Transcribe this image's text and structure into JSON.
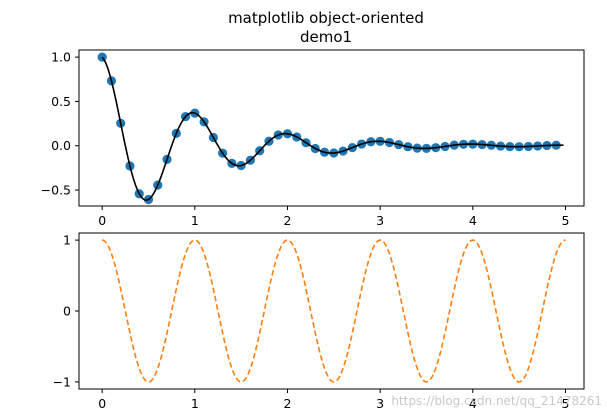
{
  "chart_data": [
    {
      "type": "scatter+line",
      "title": "matplotlib object-oriented\ndemo1",
      "title_lines": [
        "matplotlib object-oriented",
        "demo1"
      ],
      "function": "exp(-t) * cos(2*pi*t)",
      "x_ticks": [
        0,
        1,
        2,
        3,
        4,
        5
      ],
      "y_ticks": [
        -0.5,
        0.0,
        0.5,
        1.0
      ],
      "x_tick_labels": [
        "0",
        "1",
        "2",
        "3",
        "4",
        "5"
      ],
      "y_tick_labels": [
        "−0.5",
        "0.0",
        "0.5",
        "1.0"
      ],
      "xlim": [
        -0.25,
        5.2
      ],
      "ylim": [
        -0.68,
        1.08
      ],
      "grid": false,
      "series": [
        {
          "style": "scatter",
          "marker": "circle",
          "color": "#1f77b4",
          "x": [
            0.0,
            0.1,
            0.2,
            0.3,
            0.4,
            0.5,
            0.6,
            0.7,
            0.8,
            0.9,
            1.0,
            1.1,
            1.2,
            1.3,
            1.4,
            1.5,
            1.6,
            1.7,
            1.8,
            1.9,
            2.0,
            2.1,
            2.2,
            2.3,
            2.4,
            2.5,
            2.6,
            2.7,
            2.8,
            2.9,
            3.0,
            3.1,
            3.2,
            3.3,
            3.4,
            3.5,
            3.6,
            3.7,
            3.8,
            3.9,
            4.0,
            4.1,
            4.2,
            4.3,
            4.4,
            4.5,
            4.6,
            4.7,
            4.8,
            4.9
          ],
          "y": [
            1.0,
            0.732,
            0.253,
            -0.229,
            -0.542,
            -0.607,
            -0.444,
            -0.154,
            0.139,
            0.329,
            0.368,
            0.269,
            0.093,
            -0.084,
            -0.199,
            -0.223,
            -0.163,
            -0.057,
            0.051,
            0.121,
            0.135,
            0.099,
            0.034,
            -0.031,
            -0.073,
            -0.082,
            -0.06,
            -0.021,
            0.019,
            0.045,
            0.05,
            0.036,
            0.013,
            -0.011,
            -0.027,
            -0.03,
            -0.022,
            -0.008,
            0.007,
            0.016,
            0.018,
            0.013,
            0.005,
            -0.004,
            -0.01,
            -0.011,
            -0.008,
            -0.003,
            0.003,
            0.006
          ]
        },
        {
          "style": "line",
          "color": "#000000",
          "x_range": [
            0.0,
            4.98
          ],
          "samples": 250
        }
      ]
    },
    {
      "type": "line",
      "function": "cos(2*pi*t)",
      "x_ticks": [
        0,
        1,
        2,
        3,
        4,
        5
      ],
      "y_ticks": [
        -1,
        0,
        1
      ],
      "x_tick_labels": [
        "0",
        "1",
        "2",
        "3",
        "4",
        "5"
      ],
      "y_tick_labels": [
        "−1",
        "0",
        "1"
      ],
      "xlim": [
        -0.25,
        5.2
      ],
      "ylim": [
        -1.1,
        1.1
      ],
      "grid": false,
      "series": [
        {
          "style": "dashed-line",
          "color": "#ff7f0e",
          "x_range": [
            0.0,
            5.0
          ],
          "samples": 400
        }
      ]
    }
  ],
  "watermark": "https://blog.csdn.net/qq_21478261"
}
